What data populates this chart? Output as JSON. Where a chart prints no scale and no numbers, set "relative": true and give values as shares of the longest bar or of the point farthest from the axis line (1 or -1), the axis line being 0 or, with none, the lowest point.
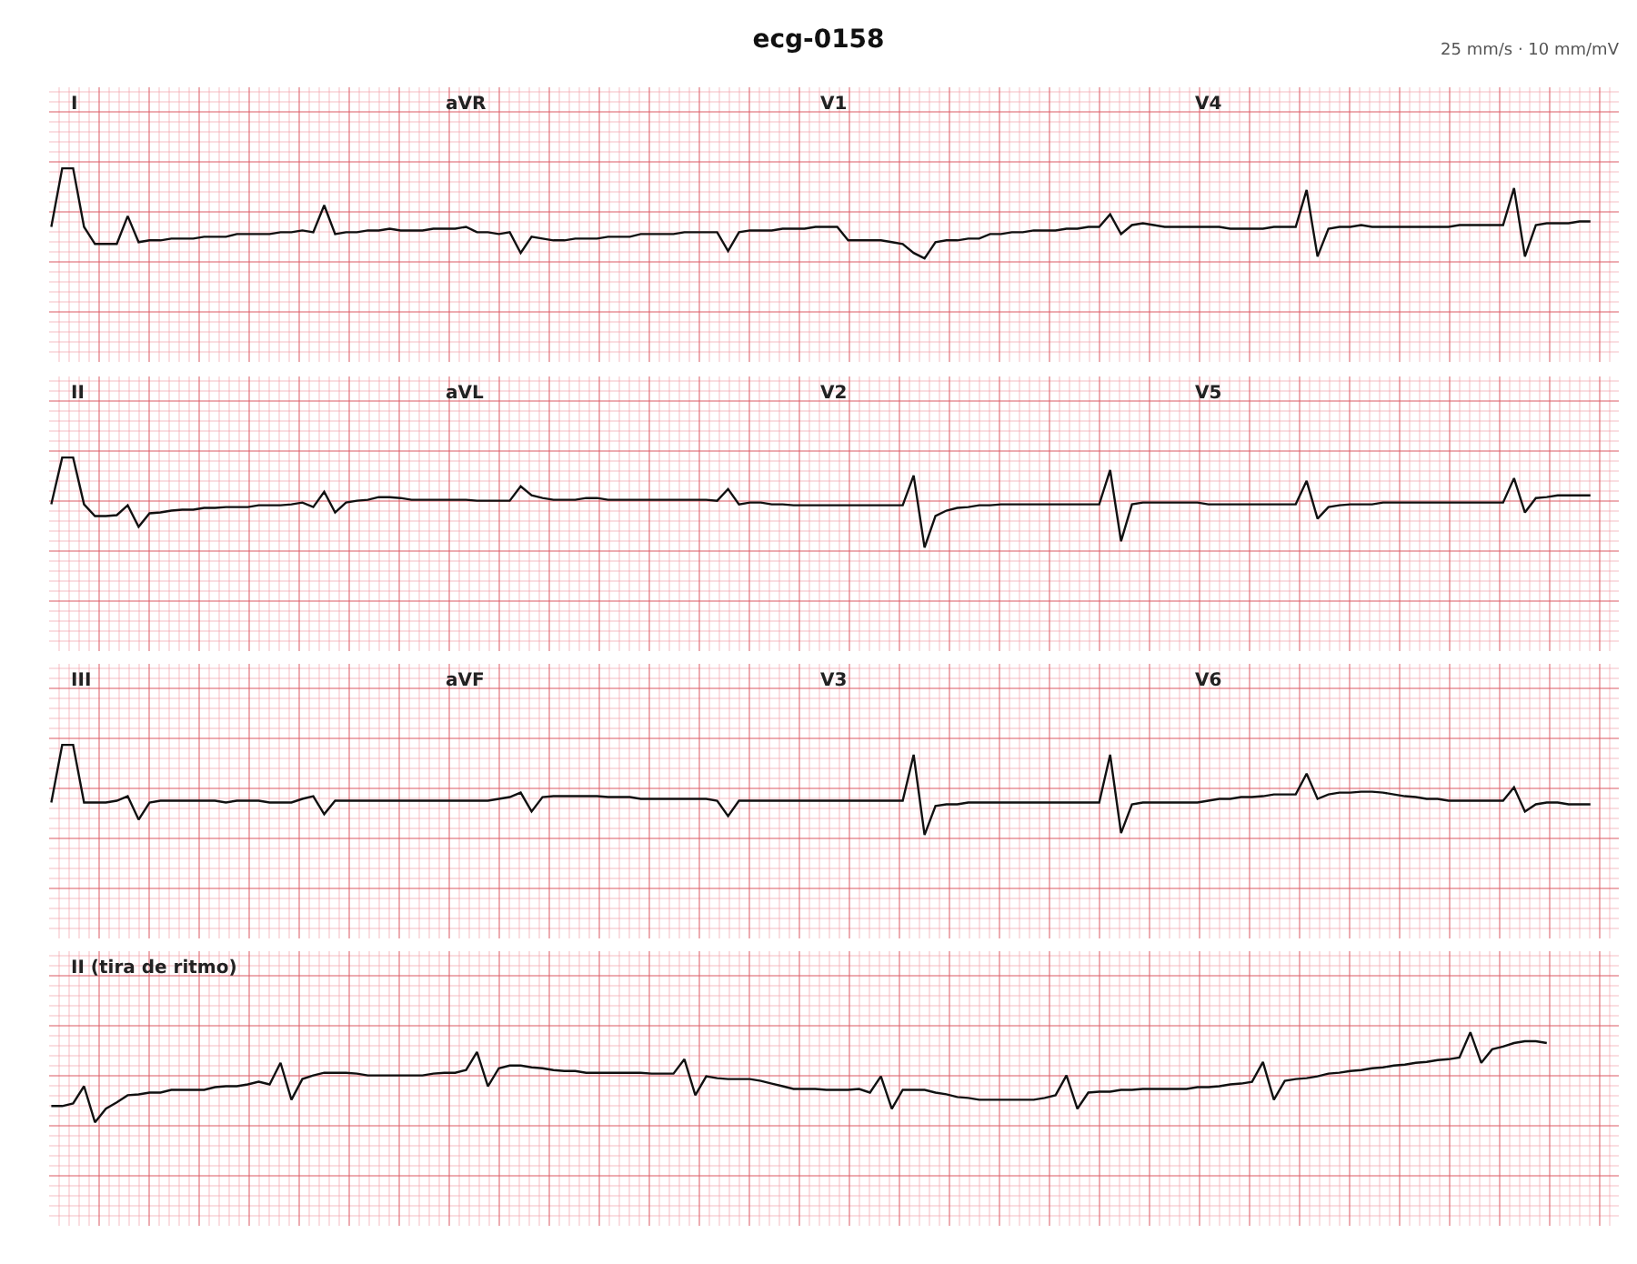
{
  "chart_data": [
    {
      "type": "line",
      "title": "ecg-0158",
      "subtitle": "25 mm/s · 10 mm/mV",
      "relative": true,
      "grid": true,
      "marker": "none",
      "annotations": [
        "I",
        "aVR",
        "V1",
        "V4"
      ],
      "categories": [
        null,
        null,
        null,
        null,
        null,
        null,
        null,
        null,
        null,
        null,
        null,
        null,
        null,
        null,
        null,
        null,
        null,
        null,
        null,
        null,
        null,
        null,
        null,
        null,
        null,
        null,
        null,
        null,
        null,
        null,
        null,
        null,
        null,
        null,
        null,
        null,
        null,
        null,
        null,
        null,
        null,
        null,
        null,
        null,
        null,
        null,
        null,
        null,
        null,
        null,
        null,
        null,
        null,
        null,
        null,
        null,
        null,
        null,
        null,
        null,
        null,
        null,
        null,
        null,
        null,
        null,
        null,
        null,
        null,
        null,
        null,
        null,
        null,
        null,
        null,
        null,
        null,
        null,
        null,
        null,
        null,
        null,
        null,
        null,
        null,
        null,
        null,
        null,
        null,
        null,
        null,
        null,
        null,
        null,
        null,
        null,
        null,
        null,
        null,
        null,
        null,
        null,
        null,
        null,
        null,
        null,
        null,
        null,
        null,
        null,
        null,
        null,
        null,
        null,
        null,
        null,
        null,
        null,
        null,
        null,
        null,
        null,
        null,
        null,
        null,
        null,
        null,
        null,
        null,
        null,
        null,
        null,
        null,
        null,
        null,
        null,
        null,
        null,
        null,
        null,
        null,
        null
      ],
      "series": [
        {
          "color": "#111111",
          "values": [
            0.35,
            1,
            1,
            0.35,
            0.16,
            0.16,
            0.16,
            0.47,
            0.18,
            0.2,
            0.2,
            0.22,
            0.22,
            0.22,
            0.24,
            0.24,
            0.24,
            0.27,
            0.27,
            0.27,
            0.27,
            0.29,
            0.29,
            0.31,
            0.29,
            0.59,
            0.27,
            0.29,
            0.29,
            0.31,
            0.31,
            0.33,
            0.31,
            0.31,
            0.31,
            0.33,
            0.33,
            0.33,
            0.35,
            0.29,
            0.29,
            0.27,
            0.29,
            0.06,
            0.24,
            0.22,
            0.2,
            0.2,
            0.22,
            0.22,
            0.22,
            0.24,
            0.24,
            0.24,
            0.27,
            0.27,
            0.27,
            0.27,
            0.29,
            0.29,
            0.29,
            0.29,
            0.08,
            0.29,
            0.31,
            0.31,
            0.31,
            0.33,
            0.33,
            0.33,
            0.35,
            0.35,
            0.35,
            0.2,
            0.2,
            0.2,
            0.2,
            0.18,
            0.16,
            0.06,
            0,
            0.18,
            0.2,
            0.2,
            0.22,
            0.22,
            0.27,
            0.27,
            0.29,
            0.29,
            0.31,
            0.31,
            0.31,
            0.33,
            0.33,
            0.35,
            0.35,
            0.49,
            0.27,
            0.37,
            0.39,
            0.37,
            0.35,
            0.35,
            0.35,
            0.35,
            0.35,
            0.35,
            0.33,
            0.33,
            0.33,
            0.33,
            0.35,
            0.35,
            0.35,
            0.76,
            0.02,
            0.33,
            0.35,
            0.35,
            0.37,
            0.35,
            0.35,
            0.35,
            0.35,
            0.35,
            0.35,
            0.35,
            0.35,
            0.37,
            0.37,
            0.37,
            0.37,
            0.37,
            0.78,
            0.02,
            0.37,
            0.39,
            0.39,
            0.39,
            0.41,
            0.41
          ]
        }
      ]
    },
    {
      "type": "line",
      "relative": true,
      "grid": true,
      "marker": "none",
      "annotations": [
        "II",
        "aVL",
        "V2",
        "V5"
      ],
      "categories": [
        null,
        null,
        null,
        null,
        null,
        null,
        null,
        null,
        null,
        null,
        null,
        null,
        null,
        null,
        null,
        null,
        null,
        null,
        null,
        null,
        null,
        null,
        null,
        null,
        null,
        null,
        null,
        null,
        null,
        null,
        null,
        null,
        null,
        null,
        null,
        null,
        null,
        null,
        null,
        null,
        null,
        null,
        null,
        null,
        null,
        null,
        null,
        null,
        null,
        null,
        null,
        null,
        null,
        null,
        null,
        null,
        null,
        null,
        null,
        null,
        null,
        null,
        null,
        null,
        null,
        null,
        null,
        null,
        null,
        null,
        null,
        null,
        null,
        null,
        null,
        null,
        null,
        null,
        null,
        null,
        null,
        null,
        null,
        null,
        null,
        null,
        null,
        null,
        null,
        null,
        null,
        null,
        null,
        null,
        null,
        null,
        null,
        null,
        null,
        null,
        null,
        null,
        null,
        null,
        null,
        null,
        null,
        null,
        null,
        null,
        null,
        null,
        null,
        null,
        null,
        null,
        null,
        null,
        null,
        null,
        null,
        null,
        null,
        null,
        null,
        null,
        null,
        null,
        null,
        null,
        null,
        null,
        null,
        null,
        null,
        null,
        null,
        null,
        null,
        null,
        null,
        null
      ],
      "series": [
        {
          "color": "#111111",
          "values": [
            0.48,
            1,
            1,
            0.48,
            0.35,
            0.35,
            0.36,
            0.47,
            0.23,
            0.38,
            0.39,
            0.41,
            0.42,
            0.42,
            0.44,
            0.44,
            0.45,
            0.45,
            0.45,
            0.47,
            0.47,
            0.47,
            0.48,
            0.5,
            0.45,
            0.62,
            0.39,
            0.5,
            0.52,
            0.53,
            0.56,
            0.56,
            0.55,
            0.53,
            0.53,
            0.53,
            0.53,
            0.53,
            0.53,
            0.52,
            0.52,
            0.52,
            0.52,
            0.68,
            0.58,
            0.55,
            0.53,
            0.53,
            0.53,
            0.55,
            0.55,
            0.53,
            0.53,
            0.53,
            0.53,
            0.53,
            0.53,
            0.53,
            0.53,
            0.53,
            0.53,
            0.52,
            0.65,
            0.48,
            0.5,
            0.5,
            0.48,
            0.48,
            0.47,
            0.47,
            0.47,
            0.47,
            0.47,
            0.47,
            0.47,
            0.47,
            0.47,
            0.47,
            0.47,
            0.8,
            0,
            0.35,
            0.41,
            0.44,
            0.45,
            0.47,
            0.47,
            0.48,
            0.48,
            0.48,
            0.48,
            0.48,
            0.48,
            0.48,
            0.48,
            0.48,
            0.48,
            0.86,
            0.07,
            0.48,
            0.5,
            0.5,
            0.5,
            0.5,
            0.5,
            0.5,
            0.48,
            0.48,
            0.48,
            0.48,
            0.48,
            0.48,
            0.48,
            0.48,
            0.48,
            0.74,
            0.32,
            0.45,
            0.47,
            0.48,
            0.48,
            0.48,
            0.5,
            0.5,
            0.5,
            0.5,
            0.5,
            0.5,
            0.5,
            0.5,
            0.5,
            0.5,
            0.5,
            0.5,
            0.77,
            0.39,
            0.55,
            0.56,
            0.58,
            0.58,
            0.58,
            0.58
          ]
        }
      ]
    },
    {
      "type": "line",
      "relative": true,
      "grid": true,
      "marker": "none",
      "annotations": [
        "III",
        "aVF",
        "V3",
        "V6"
      ],
      "categories": [
        null,
        null,
        null,
        null,
        null,
        null,
        null,
        null,
        null,
        null,
        null,
        null,
        null,
        null,
        null,
        null,
        null,
        null,
        null,
        null,
        null,
        null,
        null,
        null,
        null,
        null,
        null,
        null,
        null,
        null,
        null,
        null,
        null,
        null,
        null,
        null,
        null,
        null,
        null,
        null,
        null,
        null,
        null,
        null,
        null,
        null,
        null,
        null,
        null,
        null,
        null,
        null,
        null,
        null,
        null,
        null,
        null,
        null,
        null,
        null,
        null,
        null,
        null,
        null,
        null,
        null,
        null,
        null,
        null,
        null,
        null,
        null,
        null,
        null,
        null,
        null,
        null,
        null,
        null,
        null,
        null,
        null,
        null,
        null,
        null,
        null,
        null,
        null,
        null,
        null,
        null,
        null,
        null,
        null,
        null,
        null,
        null,
        null,
        null,
        null,
        null,
        null,
        null,
        null,
        null,
        null,
        null,
        null,
        null,
        null,
        null,
        null,
        null,
        null,
        null,
        null,
        null,
        null,
        null,
        null,
        null,
        null,
        null,
        null,
        null,
        null,
        null,
        null,
        null,
        null,
        null,
        null,
        null,
        null,
        null,
        null,
        null,
        null,
        null,
        null,
        null,
        null
      ],
      "series": [
        {
          "color": "#111111",
          "values": [
            0.36,
            1,
            1,
            0.36,
            0.36,
            0.36,
            0.38,
            0.43,
            0.17,
            0.36,
            0.38,
            0.38,
            0.38,
            0.38,
            0.38,
            0.38,
            0.36,
            0.38,
            0.38,
            0.38,
            0.36,
            0.36,
            0.36,
            0.4,
            0.43,
            0.23,
            0.38,
            0.38,
            0.38,
            0.38,
            0.38,
            0.38,
            0.38,
            0.38,
            0.38,
            0.38,
            0.38,
            0.38,
            0.38,
            0.38,
            0.38,
            0.4,
            0.42,
            0.47,
            0.26,
            0.42,
            0.43,
            0.43,
            0.43,
            0.43,
            0.43,
            0.42,
            0.42,
            0.42,
            0.4,
            0.4,
            0.4,
            0.4,
            0.4,
            0.4,
            0.4,
            0.38,
            0.21,
            0.38,
            0.38,
            0.38,
            0.38,
            0.38,
            0.38,
            0.38,
            0.38,
            0.38,
            0.38,
            0.38,
            0.38,
            0.38,
            0.38,
            0.38,
            0.38,
            0.89,
            0,
            0.32,
            0.34,
            0.34,
            0.36,
            0.36,
            0.36,
            0.36,
            0.36,
            0.36,
            0.36,
            0.36,
            0.36,
            0.36,
            0.36,
            0.36,
            0.36,
            0.89,
            0.02,
            0.34,
            0.36,
            0.36,
            0.36,
            0.36,
            0.36,
            0.36,
            0.38,
            0.4,
            0.4,
            0.42,
            0.42,
            0.43,
            0.45,
            0.45,
            0.45,
            0.68,
            0.4,
            0.45,
            0.47,
            0.47,
            0.48,
            0.48,
            0.47,
            0.45,
            0.43,
            0.42,
            0.4,
            0.4,
            0.38,
            0.38,
            0.38,
            0.38,
            0.38,
            0.38,
            0.53,
            0.26,
            0.34,
            0.36,
            0.36,
            0.34,
            0.34,
            0.34
          ]
        }
      ]
    },
    {
      "type": "line",
      "relative": true,
      "grid": true,
      "marker": "none",
      "annotations": [
        "II (tira de ritmo)"
      ],
      "categories": [
        null,
        null,
        null,
        null,
        null,
        null,
        null,
        null,
        null,
        null,
        null,
        null,
        null,
        null,
        null,
        null,
        null,
        null,
        null,
        null,
        null,
        null,
        null,
        null,
        null,
        null,
        null,
        null,
        null,
        null,
        null,
        null,
        null,
        null,
        null,
        null,
        null,
        null,
        null,
        null,
        null,
        null,
        null,
        null,
        null,
        null,
        null,
        null,
        null,
        null,
        null,
        null,
        null,
        null,
        null,
        null,
        null,
        null,
        null,
        null,
        null,
        null,
        null,
        null,
        null,
        null,
        null,
        null,
        null,
        null,
        null,
        null,
        null,
        null,
        null,
        null,
        null,
        null,
        null,
        null,
        null,
        null,
        null,
        null,
        null,
        null,
        null,
        null,
        null,
        null,
        null,
        null,
        null,
        null,
        null,
        null,
        null,
        null,
        null,
        null,
        null,
        null,
        null,
        null,
        null,
        null,
        null,
        null,
        null,
        null,
        null,
        null,
        null,
        null,
        null,
        null,
        null,
        null,
        null,
        null,
        null,
        null,
        null,
        null,
        null,
        null,
        null,
        null,
        null,
        null,
        null,
        null,
        null,
        null,
        null,
        null,
        null,
        null
      ],
      "series": [
        {
          "color": "#111111",
          "values": [
            0.18,
            0.18,
            0.21,
            0.4,
            0,
            0.15,
            0.22,
            0.3,
            0.31,
            0.33,
            0.33,
            0.36,
            0.36,
            0.36,
            0.36,
            0.39,
            0.4,
            0.4,
            0.42,
            0.45,
            0.42,
            0.66,
            0.25,
            0.48,
            0.52,
            0.55,
            0.55,
            0.55,
            0.54,
            0.52,
            0.52,
            0.52,
            0.52,
            0.52,
            0.52,
            0.54,
            0.55,
            0.55,
            0.58,
            0.78,
            0.4,
            0.6,
            0.63,
            0.63,
            0.61,
            0.6,
            0.58,
            0.57,
            0.57,
            0.55,
            0.55,
            0.55,
            0.55,
            0.55,
            0.55,
            0.54,
            0.54,
            0.54,
            0.7,
            0.3,
            0.51,
            0.49,
            0.48,
            0.48,
            0.48,
            0.46,
            0.43,
            0.4,
            0.37,
            0.37,
            0.37,
            0.36,
            0.36,
            0.36,
            0.37,
            0.33,
            0.51,
            0.15,
            0.36,
            0.36,
            0.36,
            0.33,
            0.31,
            0.28,
            0.27,
            0.25,
            0.25,
            0.25,
            0.25,
            0.25,
            0.25,
            0.27,
            0.3,
            0.52,
            0.15,
            0.33,
            0.34,
            0.34,
            0.36,
            0.36,
            0.37,
            0.37,
            0.37,
            0.37,
            0.37,
            0.39,
            0.39,
            0.4,
            0.42,
            0.43,
            0.45,
            0.67,
            0.25,
            0.46,
            0.48,
            0.49,
            0.51,
            0.54,
            0.55,
            0.57,
            0.58,
            0.6,
            0.61,
            0.63,
            0.64,
            0.66,
            0.67,
            0.69,
            0.7,
            0.72,
            1,
            0.66,
            0.81,
            0.84,
            0.88,
            0.9,
            0.9,
            0.88
          ]
        }
      ]
    }
  ]
}
